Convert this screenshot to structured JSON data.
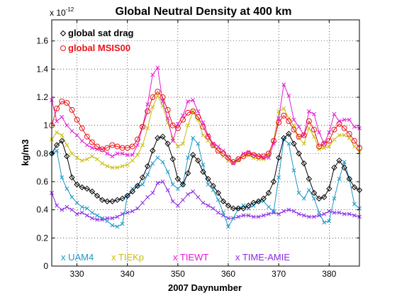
{
  "chart_data": {
    "type": "line",
    "title": "Global Neutral Density at 400 km",
    "xlabel": "2007 Daynumber",
    "ylabel": "kg/m3",
    "y_multiplier": "x 10",
    "y_exponent": "-12",
    "xlim": [
      325,
      386
    ],
    "ylim": [
      0,
      1.75
    ],
    "xticks": [
      330,
      340,
      350,
      360,
      370,
      380
    ],
    "yticks": [
      0,
      0.2,
      0.4,
      0.6,
      0.8,
      1,
      1.2,
      1.4,
      1.6
    ],
    "grid": true,
    "legend_top": [
      {
        "marker": "diamond",
        "label": "global sat drag",
        "color": "#000000"
      },
      {
        "marker": "o",
        "label": "global MSIS00",
        "color": "#e8141a"
      }
    ],
    "legend_bottom": [
      {
        "marker": "x",
        "label": "UAM4",
        "color": "#1a97c9"
      },
      {
        "marker": "x",
        "label": "TIEKp",
        "color": "#c8bd0a"
      },
      {
        "marker": "x",
        "label": "TIEWT",
        "color": "#e41ad8"
      },
      {
        "marker": "x",
        "label": "TIME-AMIE",
        "color": "#8a2be2"
      }
    ],
    "series": [
      {
        "name": "global sat drag",
        "color": "#000000",
        "marker": "diamond",
        "x": [
          325,
          326,
          327,
          328,
          329,
          330,
          331,
          332,
          333,
          334,
          335,
          336,
          337,
          338,
          339,
          340,
          341,
          342,
          343,
          344,
          345,
          346,
          347,
          348,
          349,
          350,
          351,
          352,
          353,
          354,
          355,
          356,
          357,
          358,
          359,
          360,
          361,
          362,
          363,
          364,
          365,
          366,
          367,
          368,
          369,
          370,
          371,
          372,
          373,
          374,
          375,
          376,
          377,
          378,
          379,
          380,
          381,
          382,
          383,
          384,
          385,
          386
        ],
        "y": [
          0.8,
          0.86,
          0.89,
          0.78,
          0.63,
          0.58,
          0.56,
          0.55,
          0.53,
          0.5,
          0.47,
          0.46,
          0.46,
          0.47,
          0.48,
          0.5,
          0.53,
          0.57,
          0.63,
          0.71,
          0.82,
          0.91,
          0.92,
          0.87,
          0.76,
          0.62,
          0.58,
          0.66,
          0.79,
          0.75,
          0.67,
          0.62,
          0.57,
          0.52,
          0.46,
          0.43,
          0.41,
          0.41,
          0.41,
          0.43,
          0.45,
          0.46,
          0.48,
          0.52,
          0.6,
          0.77,
          0.91,
          0.94,
          0.87,
          0.8,
          0.73,
          0.62,
          0.52,
          0.48,
          0.49,
          0.55,
          0.7,
          0.75,
          0.7,
          0.62,
          0.56,
          0.54
        ]
      },
      {
        "name": "global MSIS00",
        "color": "#e8141a",
        "marker": "o",
        "x": [
          325,
          326,
          327,
          328,
          329,
          330,
          331,
          332,
          333,
          334,
          335,
          336,
          337,
          338,
          339,
          340,
          341,
          342,
          343,
          344,
          345,
          346,
          347,
          348,
          349,
          350,
          351,
          352,
          353,
          354,
          355,
          356,
          357,
          358,
          359,
          360,
          361,
          362,
          363,
          364,
          365,
          366,
          367,
          368,
          369,
          370,
          371,
          372,
          373,
          374,
          375,
          376,
          377,
          378,
          379,
          380,
          381,
          382,
          383,
          384,
          385,
          386
        ],
        "y": [
          1.0,
          1.12,
          1.17,
          1.16,
          1.11,
          1.04,
          0.98,
          0.92,
          0.88,
          0.85,
          0.83,
          0.84,
          0.86,
          0.85,
          0.84,
          0.84,
          0.85,
          0.9,
          0.99,
          1.1,
          1.2,
          1.24,
          1.2,
          1.11,
          1.0,
          0.98,
          1.04,
          1.09,
          1.1,
          1.06,
          0.99,
          0.92,
          0.86,
          0.82,
          0.8,
          0.77,
          0.74,
          0.76,
          0.78,
          0.8,
          0.79,
          0.78,
          0.78,
          0.8,
          0.89,
          1.02,
          1.07,
          1.03,
          0.97,
          0.92,
          0.93,
          1.03,
          0.97,
          0.85,
          0.87,
          0.89,
          0.97,
          1.01,
          0.98,
          0.94,
          0.89,
          0.84
        ]
      },
      {
        "name": "UAM4",
        "color": "#1a97c9",
        "marker": "x",
        "x": [
          325,
          326,
          327,
          328,
          329,
          330,
          331,
          332,
          333,
          334,
          335,
          336,
          337,
          338,
          339,
          340,
          341,
          342,
          343,
          344,
          345,
          346,
          347,
          348,
          349,
          350,
          351,
          352,
          353,
          354,
          355,
          356,
          357,
          358,
          359,
          360,
          361,
          362,
          363,
          364,
          365,
          366,
          367,
          368,
          369,
          370,
          371,
          372,
          373,
          374,
          375,
          376,
          377,
          378,
          379,
          380,
          381,
          382,
          383,
          384,
          385,
          386
        ],
        "y": [
          0.8,
          0.82,
          0.63,
          0.55,
          0.49,
          0.45,
          0.42,
          0.41,
          0.38,
          0.36,
          0.34,
          0.32,
          0.29,
          0.28,
          0.3,
          0.5,
          0.55,
          0.57,
          0.58,
          0.65,
          0.73,
          0.77,
          0.74,
          0.67,
          0.58,
          0.55,
          0.58,
          0.77,
          0.91,
          0.87,
          0.72,
          0.58,
          0.54,
          0.47,
          0.38,
          0.28,
          0.34,
          0.41,
          0.43,
          0.41,
          0.43,
          0.46,
          0.46,
          0.42,
          0.39,
          0.63,
          0.9,
          0.87,
          0.68,
          0.52,
          0.48,
          0.54,
          0.48,
          0.38,
          0.31,
          0.32,
          0.48,
          0.62,
          0.74,
          0.62,
          0.44,
          0.41
        ]
      },
      {
        "name": "TIEKp",
        "color": "#c8bd0a",
        "marker": "x",
        "x": [
          325,
          326,
          327,
          328,
          329,
          330,
          331,
          332,
          333,
          334,
          335,
          336,
          337,
          338,
          339,
          340,
          341,
          342,
          343,
          344,
          345,
          346,
          347,
          348,
          349,
          350,
          351,
          352,
          353,
          354,
          355,
          356,
          357,
          358,
          359,
          360,
          361,
          362,
          363,
          364,
          365,
          366,
          367,
          368,
          369,
          370,
          371,
          372,
          373,
          374,
          375,
          376,
          377,
          378,
          379,
          380,
          381,
          382,
          383,
          384,
          385,
          386
        ],
        "y": [
          0.9,
          0.95,
          0.93,
          0.86,
          0.8,
          0.77,
          0.75,
          0.76,
          0.78,
          0.76,
          0.73,
          0.71,
          0.7,
          0.7,
          0.71,
          0.72,
          0.75,
          0.79,
          0.86,
          0.98,
          1.13,
          1.21,
          1.14,
          1.02,
          0.91,
          0.85,
          0.87,
          1.0,
          1.1,
          1.04,
          0.93,
          0.89,
          0.85,
          0.82,
          0.78,
          0.75,
          0.74,
          0.75,
          0.78,
          0.79,
          0.77,
          0.76,
          0.76,
          0.79,
          0.89,
          1.1,
          1.12,
          1.05,
          1.0,
          0.91,
          0.87,
          0.98,
          0.92,
          0.83,
          0.84,
          0.85,
          0.9,
          0.93,
          0.93,
          0.91,
          0.85,
          0.81
        ]
      },
      {
        "name": "TIEWT",
        "color": "#e41ad8",
        "marker": "x",
        "x": [
          325,
          326,
          327,
          328,
          329,
          330,
          331,
          332,
          333,
          334,
          335,
          336,
          337,
          338,
          339,
          340,
          341,
          342,
          343,
          344,
          345,
          346,
          347,
          348,
          349,
          350,
          351,
          352,
          353,
          354,
          355,
          356,
          357,
          358,
          359,
          360,
          361,
          362,
          363,
          364,
          365,
          366,
          367,
          368,
          369,
          370,
          371,
          372,
          373,
          374,
          375,
          376,
          377,
          378,
          379,
          380,
          381,
          382,
          383,
          384,
          385,
          386
        ],
        "y": [
          1.18,
          1.03,
          1.06,
          1.0,
          0.96,
          0.93,
          0.89,
          0.86,
          0.84,
          0.83,
          0.83,
          0.8,
          0.78,
          0.8,
          0.8,
          0.79,
          0.79,
          0.86,
          0.99,
          1.15,
          1.36,
          1.41,
          1.17,
          1.05,
          0.89,
          1.01,
          1.07,
          1.17,
          1.18,
          1.1,
          1.02,
          0.93,
          0.87,
          0.85,
          0.82,
          0.77,
          0.73,
          0.76,
          0.8,
          0.81,
          0.79,
          0.78,
          0.77,
          0.77,
          0.87,
          1.05,
          1.29,
          1.21,
          1.04,
          0.99,
          0.93,
          1.1,
          1.08,
          0.95,
          0.87,
          0.95,
          1.08,
          1.03,
          1.04,
          1.04,
          0.99,
          0.98
        ]
      },
      {
        "name": "TIME-AMIE",
        "color": "#8a2be2",
        "marker": "x",
        "x": [
          325,
          326,
          327,
          328,
          329,
          330,
          331,
          332,
          333,
          334,
          335,
          336,
          337,
          338,
          339,
          340,
          341,
          342,
          343,
          344,
          345,
          346,
          347,
          348,
          349,
          350,
          351,
          352,
          353,
          354,
          355,
          356,
          357,
          358,
          359,
          360,
          361,
          362,
          363,
          364,
          365,
          366,
          367,
          368,
          369,
          370,
          371,
          372,
          373,
          374,
          375,
          376,
          377,
          378,
          379,
          380,
          381,
          382,
          383,
          384,
          385,
          386
        ],
        "y": [
          0.52,
          0.43,
          0.4,
          0.42,
          0.4,
          0.37,
          0.38,
          0.36,
          0.34,
          0.33,
          0.33,
          0.34,
          0.34,
          0.35,
          0.37,
          0.38,
          0.39,
          0.41,
          0.45,
          0.49,
          0.52,
          0.59,
          0.6,
          0.54,
          0.46,
          0.43,
          0.47,
          0.51,
          0.53,
          0.49,
          0.45,
          0.43,
          0.41,
          0.38,
          0.36,
          0.34,
          0.34,
          0.35,
          0.36,
          0.36,
          0.35,
          0.35,
          0.36,
          0.37,
          0.38,
          0.37,
          0.39,
          0.4,
          0.39,
          0.37,
          0.36,
          0.35,
          0.35,
          0.36,
          0.37,
          0.39,
          0.38,
          0.38,
          0.37,
          0.37,
          0.36,
          0.35
        ]
      }
    ]
  }
}
